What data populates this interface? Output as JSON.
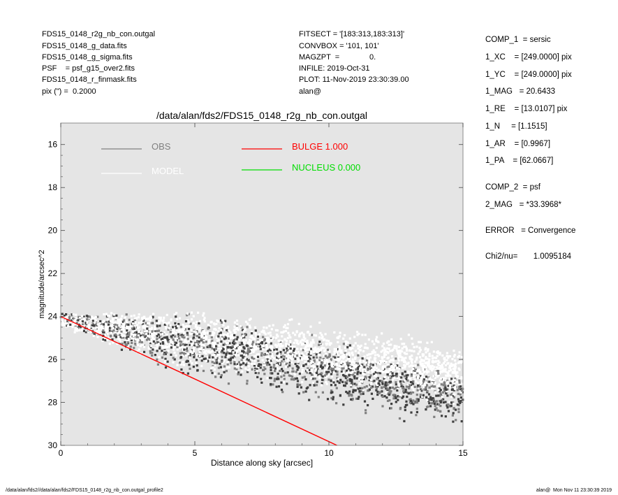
{
  "header_left": [
    "FDS15_0148_r2g_nb_con.outgal",
    "FDS15_0148_g_data.fits",
    "FDS15_0148_g_sigma.fits",
    "PSF    = psf_g15_over2.fits",
    "FDS15_0148_r_finmask.fits",
    "pix (\") =  0.2000"
  ],
  "header_mid": [
    "FITSECT = '[183:313,183:313]'",
    "CONVBOX = '101, 101'",
    "MAGZPT  =              0.",
    "INFILE: 2019-Oct-31",
    "PLOT: 11-Nov-2019 23:30:39.00",
    "alan@"
  ],
  "right_panel": [
    "COMP_1  = sersic",
    "1_XC    = [249.0000] pix",
    "1_YC    = [249.0000] pix",
    "1_MAG   = 20.6433",
    "1_RE    = [13.0107] pix",
    "1_N     = [1.1515]",
    "1_AR    = [0.9967]",
    "1_PA    = [62.0667]",
    "COMP_2  = psf",
    "2_MAG   = *33.3968*",
    "ERROR   = Convergence",
    "Chi2/nu=       1.0095184"
  ],
  "footer": {
    "left": "/data/alan/fds2//data/alan/fds2/FDS15_0148_r2g_nb_con.outgal_profile2",
    "right": "alan@  Mon Nov 11 23:30:39 2019"
  },
  "colors": {
    "plot_bg": "#e5e5e5",
    "obs": "#808080",
    "model": "#ffffff",
    "bulge": "#ff0000",
    "nucleus": "#00dd00"
  },
  "chart_data": {
    "type": "scatter",
    "title": "/data/alan/fds2/FDS15_0148_r2g_nb_con.outgal",
    "xlabel": "Distance along sky [arcsec]",
    "ylabel": "magnitude/arcsec^2",
    "xlim": [
      0,
      15
    ],
    "ylim": [
      30,
      15
    ],
    "y_inverted": true,
    "xticks": [
      0,
      5,
      10,
      15
    ],
    "yticks": [
      16,
      18,
      20,
      22,
      24,
      26,
      28,
      30
    ],
    "grid": false,
    "legend": [
      {
        "name": "OBS",
        "color": "#808080"
      },
      {
        "name": "MODEL",
        "color": "#ffffff"
      },
      {
        "name": "BULGE  1.000",
        "color": "#ff0000"
      },
      {
        "name": "NUCLEUS  0.000",
        "color": "#00dd00"
      }
    ],
    "series": [
      {
        "name": "OBS",
        "kind": "scatter",
        "x_range": [
          0,
          15
        ],
        "y_center_at_0": 24.1,
        "y_center_at_15": 27.9,
        "y_spread": 1.6
      },
      {
        "name": "MODEL",
        "kind": "scatter",
        "x_range": [
          0,
          15
        ],
        "y_center_at_0": 24.2,
        "y_center_at_15": 26.7,
        "y_spread": 1.4
      },
      {
        "name": "BULGE  1.000",
        "kind": "line",
        "x": [
          0,
          10.3
        ],
        "y": [
          24.0,
          30.0
        ]
      }
    ]
  }
}
